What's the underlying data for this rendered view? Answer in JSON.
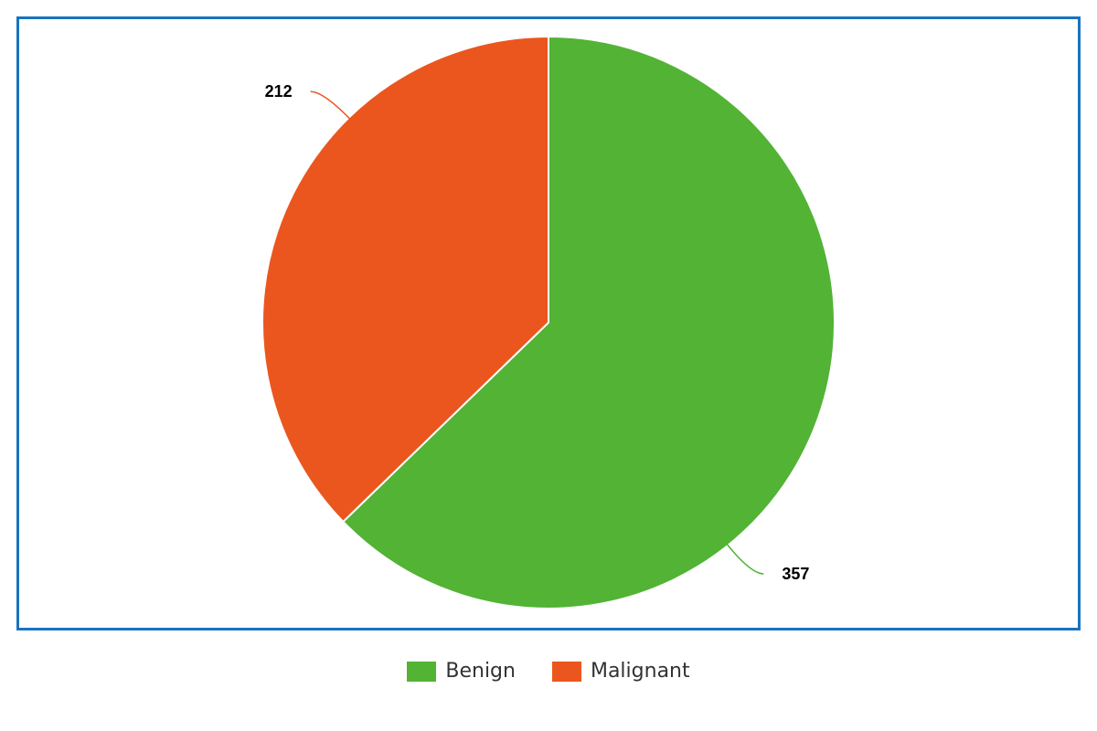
{
  "chart_data": {
    "type": "pie",
    "categories": [
      "Benign",
      "Malignant"
    ],
    "values": [
      357,
      212
    ],
    "colors": [
      "#52b335",
      "#eb561e"
    ],
    "data_labels": [
      "357",
      "212"
    ],
    "legend": {
      "placement": "bottom",
      "entries": [
        "Benign",
        "Malignant"
      ]
    },
    "start_angle_deg": 0,
    "direction": "clockwise"
  }
}
